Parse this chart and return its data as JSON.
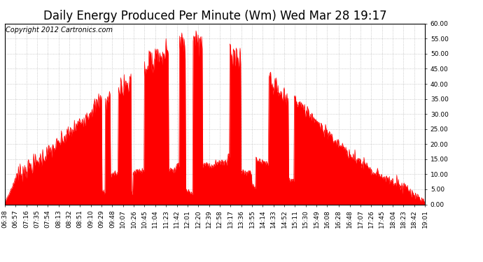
{
  "title": "Daily Energy Produced Per Minute (Wm) Wed Mar 28 19:17",
  "copyright_text": "Copyright 2012 Cartronics.com",
  "line_color": "#ff0000",
  "bg_color": "#ffffff",
  "plot_bg_color": "#ffffff",
  "grid_color": "#bbbbbb",
  "ylim": [
    0,
    60
  ],
  "yticks": [
    0.0,
    5.0,
    10.0,
    15.0,
    20.0,
    25.0,
    30.0,
    35.0,
    40.0,
    45.0,
    50.0,
    55.0,
    60.0
  ],
  "x_tick_labels": [
    "06:38",
    "06:57",
    "07:16",
    "07:35",
    "07:54",
    "08:13",
    "08:32",
    "08:51",
    "09:10",
    "09:29",
    "09:48",
    "10:07",
    "10:26",
    "10:45",
    "11:04",
    "11:23",
    "11:42",
    "12:01",
    "12:20",
    "12:39",
    "12:58",
    "13:17",
    "13:36",
    "13:55",
    "14:14",
    "14:33",
    "14:52",
    "15:11",
    "15:30",
    "15:49",
    "16:08",
    "16:28",
    "16:48",
    "17:07",
    "17:26",
    "17:45",
    "18:04",
    "18:23",
    "18:42",
    "19:01"
  ],
  "tick_fontsize": 6.5,
  "title_fontsize": 12,
  "copyright_fontsize": 7,
  "figwidth": 6.9,
  "figheight": 3.75,
  "dpi": 100
}
